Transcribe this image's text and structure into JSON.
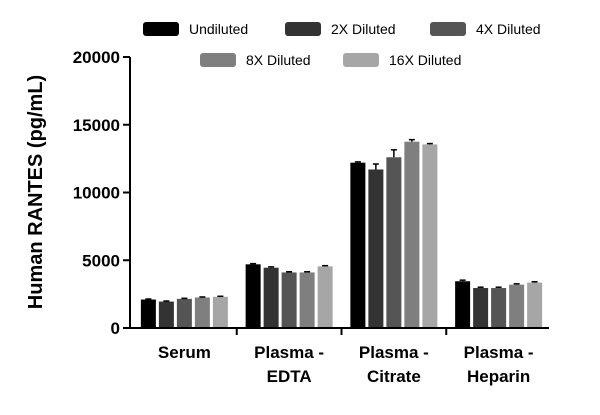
{
  "chart_data": {
    "type": "bar",
    "title": "",
    "xlabel": "",
    "ylabel": "Human RANTES (pg/mL)",
    "ylim": [
      0,
      20000
    ],
    "yticks": [
      0,
      5000,
      10000,
      15000,
      20000
    ],
    "tick_labels": [
      "0",
      "5000",
      "10000",
      "15000",
      "20000"
    ],
    "categories": [
      [
        "Serum"
      ],
      [
        "Plasma -",
        "EDTA"
      ],
      [
        "Plasma -",
        "Citrate"
      ],
      [
        "Plasma -",
        "Heparin"
      ]
    ],
    "legend_position": "top",
    "series": [
      {
        "name": "Undiluted",
        "color": "#000000",
        "values": [
          2100,
          4700,
          12200,
          3450
        ],
        "errors": [
          40,
          50,
          60,
          80
        ]
      },
      {
        "name": "2X Diluted",
        "color": "#333333",
        "values": [
          1950,
          4450,
          11700,
          2950
        ],
        "errors": [
          40,
          60,
          400,
          60
        ]
      },
      {
        "name": "4X Diluted",
        "color": "#555555",
        "values": [
          2150,
          4100,
          12600,
          2950
        ],
        "errors": [
          40,
          50,
          550,
          60
        ]
      },
      {
        "name": "8X Diluted",
        "color": "#7f7f7f",
        "values": [
          2250,
          4100,
          13750,
          3200
        ],
        "errors": [
          40,
          50,
          150,
          60
        ]
      },
      {
        "name": "16X Diluted",
        "color": "#a6a6a6",
        "values": [
          2300,
          4550,
          13550,
          3350
        ],
        "errors": [
          40,
          50,
          60,
          60
        ]
      }
    ]
  }
}
